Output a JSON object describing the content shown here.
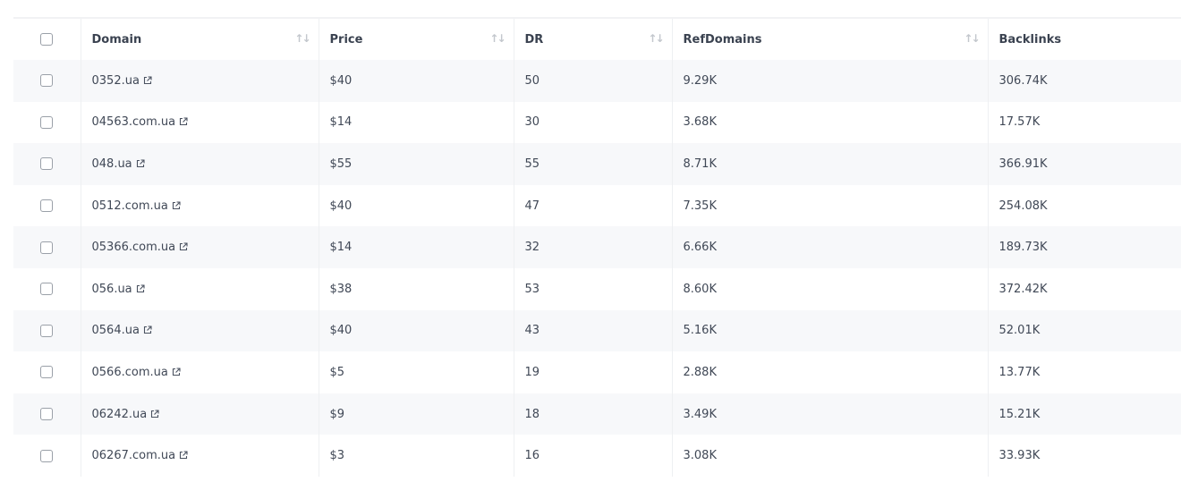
{
  "columns": [
    {
      "label": "Domain",
      "sortable": true
    },
    {
      "label": "Price",
      "sortable": true
    },
    {
      "label": "DR",
      "sortable": true
    },
    {
      "label": "RefDomains",
      "sortable": true
    },
    {
      "label": "Backlinks",
      "sortable": false
    }
  ],
  "rows": [
    {
      "domain": "0352.ua",
      "price": "$40",
      "dr": "50",
      "refdomains": "9.29K",
      "backlinks": "306.74K"
    },
    {
      "domain": "04563.com.ua",
      "price": "$14",
      "dr": "30",
      "refdomains": "3.68K",
      "backlinks": "17.57K"
    },
    {
      "domain": "048.ua",
      "price": "$55",
      "dr": "55",
      "refdomains": "8.71K",
      "backlinks": "366.91K"
    },
    {
      "domain": "0512.com.ua",
      "price": "$40",
      "dr": "47",
      "refdomains": "7.35K",
      "backlinks": "254.08K"
    },
    {
      "domain": "05366.com.ua",
      "price": "$14",
      "dr": "32",
      "refdomains": "6.66K",
      "backlinks": "189.73K"
    },
    {
      "domain": "056.ua",
      "price": "$38",
      "dr": "53",
      "refdomains": "8.60K",
      "backlinks": "372.42K"
    },
    {
      "domain": "0564.ua",
      "price": "$40",
      "dr": "43",
      "refdomains": "5.16K",
      "backlinks": "52.01K"
    },
    {
      "domain": "0566.com.ua",
      "price": "$5",
      "dr": "19",
      "refdomains": "2.88K",
      "backlinks": "13.77K"
    },
    {
      "domain": "06242.ua",
      "price": "$9",
      "dr": "18",
      "refdomains": "3.49K",
      "backlinks": "15.21K"
    },
    {
      "domain": "06267.com.ua",
      "price": "$3",
      "dr": "16",
      "refdomains": "3.08K",
      "backlinks": "33.93K"
    }
  ],
  "icons": {
    "sort": "sort-arrows-icon",
    "external": "external-link-icon"
  }
}
